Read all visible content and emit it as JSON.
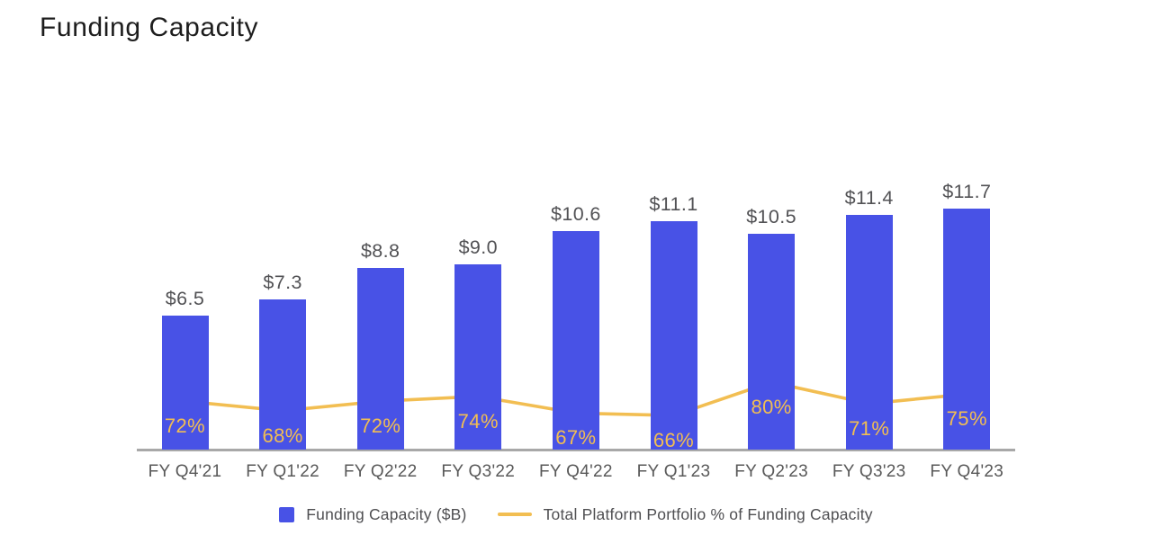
{
  "title": "Funding Capacity",
  "colors": {
    "bar": "#4852e6",
    "line": "#f2be52",
    "value_label": "#525255",
    "axis_label": "#595959",
    "axis_line": "#a8a8a8",
    "title_text": "#1d1d1d",
    "legend_text": "#4f4f52"
  },
  "legend": {
    "bar_label": "Funding Capacity ($B)",
    "line_label": "Total Platform Portfolio % of Funding Capacity"
  },
  "chart_data": {
    "type": "combo",
    "title": "Funding Capacity",
    "categories": [
      "FY Q4'21",
      "FY Q1'22",
      "FY Q2'22",
      "FY Q3'22",
      "FY Q4'22",
      "FY Q1'23",
      "FY Q2'23",
      "FY Q3'23",
      "FY Q4'23"
    ],
    "series": [
      {
        "name": "Funding Capacity ($B)",
        "type": "bar",
        "values": [
          6.5,
          7.3,
          8.8,
          9.0,
          10.6,
          11.1,
          10.5,
          11.4,
          11.7
        ],
        "labels": [
          "$6.5",
          "$7.3",
          "$8.8",
          "$9.0",
          "$10.6",
          "$11.1",
          "$10.5",
          "$11.4",
          "$11.7"
        ],
        "color": "#4852e6"
      },
      {
        "name": "Total Platform Portfolio % of Funding Capacity",
        "type": "line",
        "values": [
          72,
          68,
          72,
          74,
          67,
          66,
          80,
          71,
          75
        ],
        "labels": [
          "72%",
          "68%",
          "72%",
          "74%",
          "67%",
          "66%",
          "80%",
          "71%",
          "75%"
        ],
        "color": "#f2be52"
      }
    ],
    "bar_axis_range": [
      0,
      12
    ],
    "line_axis_range_pct": [
      0,
      100
    ],
    "grid": false,
    "y_axis_visible": false,
    "legend_position": "bottom",
    "value_labels_position": "above-bar",
    "pct_labels_position": "inside-bar-bottom"
  }
}
